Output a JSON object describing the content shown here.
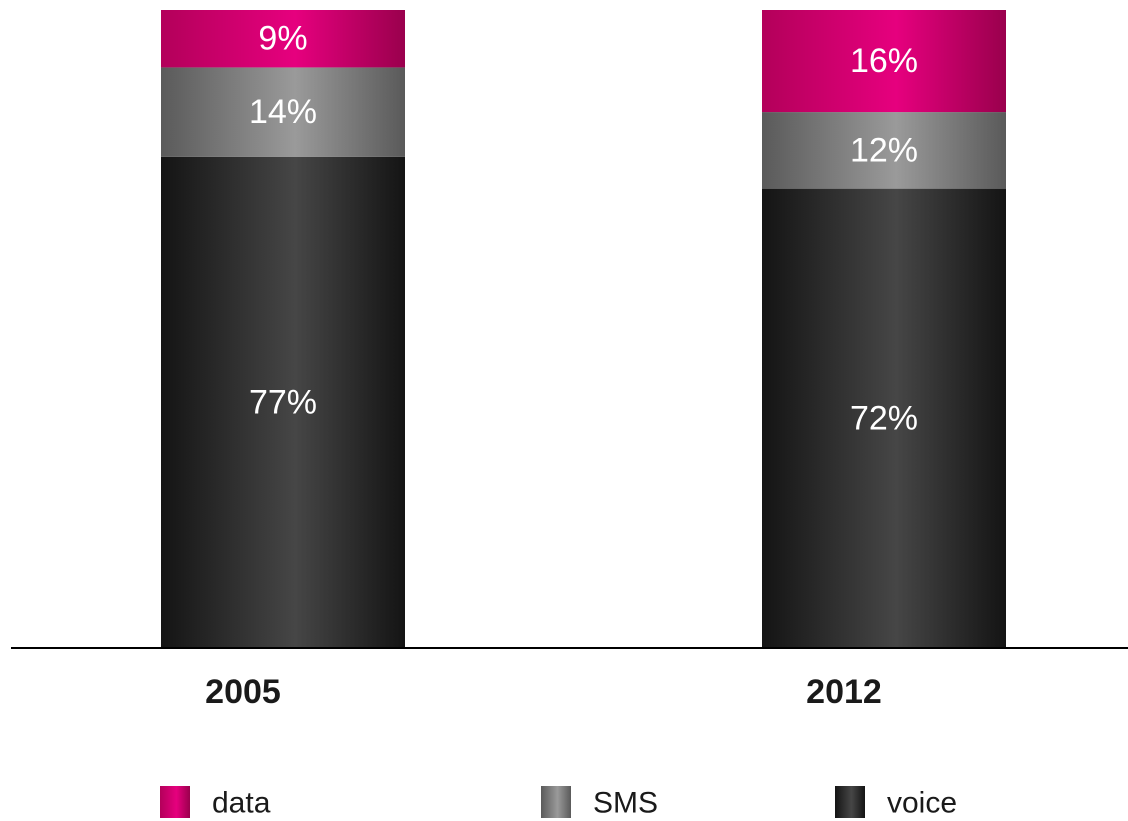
{
  "chart_data": {
    "type": "bar",
    "stacked": true,
    "categories": [
      "2005",
      "2012"
    ],
    "series": [
      {
        "name": "voice",
        "values": [
          77,
          72
        ],
        "labels": [
          "77%",
          "72%"
        ],
        "color": "#2b2b2b"
      },
      {
        "name": "SMS",
        "values": [
          14,
          12
        ],
        "labels": [
          "14%",
          "12%"
        ],
        "color": "#7a7a7a"
      },
      {
        "name": "data",
        "values": [
          9,
          16
        ],
        "labels": [
          "9%",
          "16%"
        ],
        "color": "#d9006c"
      }
    ],
    "title": "",
    "xlabel": "",
    "ylabel": "",
    "ylim": [
      0,
      100
    ],
    "grid": false,
    "legend": {
      "placement": "bottom",
      "order": [
        "data",
        "SMS",
        "voice"
      ]
    }
  }
}
